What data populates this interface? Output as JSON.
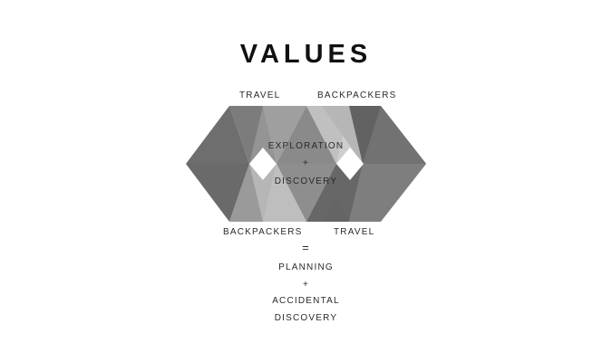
{
  "title": "VALUES",
  "diagram": {
    "label_top_left": "TRAVEL",
    "label_top_right": "BACKPACKERS",
    "label_bottom_left": "BACKPACKERS",
    "label_bottom_right": "TRAVEL",
    "center_line1": "EXPLORATION",
    "center_plus": "+",
    "center_line2": "DISCOVERY"
  },
  "equation": {
    "equals": "=",
    "line1": "PLANNING",
    "plus": "+",
    "line2": "ACCIDENTAL",
    "line3": "DISCOVERY"
  },
  "colors": {
    "dark": "#5c5c5c",
    "mid_dark": "#707070",
    "mid": "#8c8c8c",
    "light": "#aaaaaa",
    "lighter": "#c4c4c4",
    "darkest": "#4a4a4a"
  }
}
